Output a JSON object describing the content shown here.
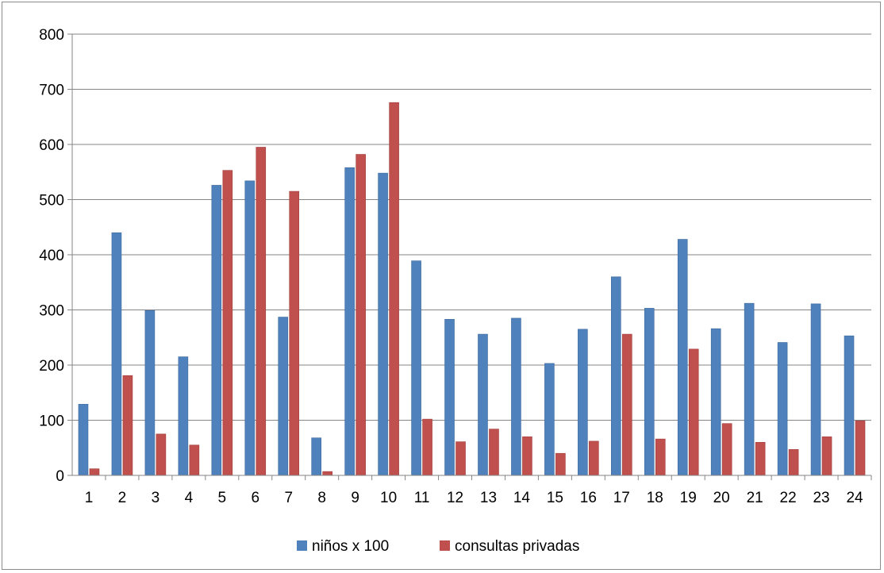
{
  "chart_data": {
    "type": "bar",
    "title": "",
    "xlabel": "",
    "ylabel": "",
    "ylim": [
      0,
      800
    ],
    "yticks": [
      0,
      100,
      200,
      300,
      400,
      500,
      600,
      700,
      800
    ],
    "grid": true,
    "legend_position": "bottom",
    "categories": [
      "1",
      "2",
      "3",
      "4",
      "5",
      "6",
      "7",
      "8",
      "9",
      "10",
      "11",
      "12",
      "13",
      "14",
      "15",
      "16",
      "17",
      "18",
      "19",
      "20",
      "21",
      "22",
      "23",
      "24"
    ],
    "series": [
      {
        "name": "niños x 100",
        "color": "#4F81BD",
        "values": [
          129,
          440,
          299,
          215,
          526,
          534,
          287,
          68,
          558,
          548,
          389,
          283,
          256,
          285,
          203,
          265,
          360,
          303,
          428,
          266,
          312,
          241,
          311,
          253
        ]
      },
      {
        "name": "consultas privadas",
        "color": "#C0504D",
        "values": [
          12,
          181,
          75,
          55,
          553,
          595,
          515,
          7,
          582,
          676,
          102,
          61,
          84,
          70,
          40,
          62,
          256,
          66,
          229,
          94,
          60,
          47,
          70,
          99
        ]
      }
    ]
  }
}
